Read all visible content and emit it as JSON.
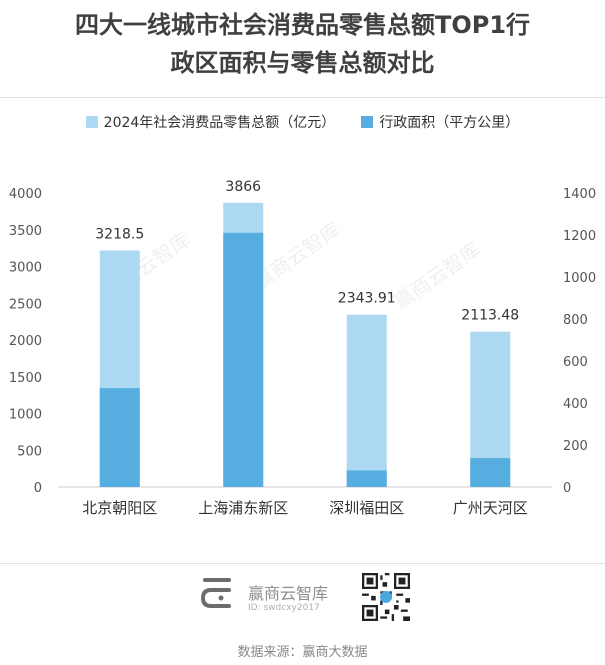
{
  "title_line1": "四大一线城市社会消费品零售总额TOP1行",
  "title_line2": "政区面积与零售总额对比",
  "legend": [
    {
      "label": "2024年社会消费品零售总额（亿元）",
      "color": "#acd8f1"
    },
    {
      "label": "行政面积（平方公里）",
      "color": "#56ade0"
    }
  ],
  "watermark": "赢商云智库",
  "brand": {
    "name": "赢商云智库",
    "id": "ID: swdcxy2017"
  },
  "source": "数据来源：赢商大数据",
  "chart_data": {
    "type": "bar",
    "categories": [
      "北京朝阳区",
      "上海浦东新区",
      "深圳福田区",
      "广州天河区"
    ],
    "series": [
      {
        "name": "2024年社会消费品零售总额（亿元）",
        "values": [
          3218.5,
          3866,
          2343.91,
          2113.48
        ],
        "axis": "left",
        "color": "#acd8f1",
        "data_labels": [
          "3218.5",
          "3866",
          "2343.91",
          "2113.48"
        ]
      },
      {
        "name": "行政面积（平方公里）",
        "values": [
          470.8,
          1210.4,
          78.66,
          137.38
        ],
        "axis": "right",
        "color": "#56ade0"
      }
    ],
    "y_left": {
      "min": 0,
      "max": 4000,
      "ticks": [
        0,
        500,
        1000,
        1500,
        2000,
        2500,
        3000,
        3500,
        4000
      ]
    },
    "y_right": {
      "min": 0,
      "max": 1400,
      "ticks": [
        0,
        200,
        400,
        600,
        800,
        1000,
        1200,
        1400
      ]
    },
    "grid": false,
    "legend_position": "top"
  }
}
